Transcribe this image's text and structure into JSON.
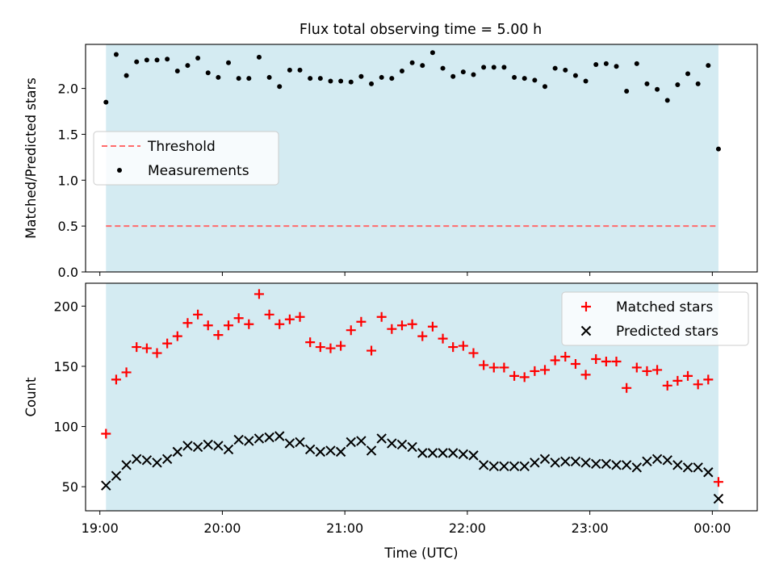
{
  "chart_data": [
    {
      "type": "scatter",
      "title": "Flux total observing time = 5.00 h",
      "xlabel": "",
      "ylabel": "Matched/Predicted stars",
      "xlim": [
        "18:53",
        "00:22"
      ],
      "ylim": [
        0,
        2.48
      ],
      "yticks": [
        0.0,
        0.5,
        1.0,
        1.5,
        2.0
      ],
      "ytick_labels": [
        "0.0",
        "0.5",
        "1.0",
        "1.5",
        "2.0"
      ],
      "shaded_region": {
        "x_start": "19:03",
        "x_end": "00:03",
        "color": "#add8e6"
      },
      "threshold": {
        "name": "Threshold",
        "y": 0.5,
        "color": "#ff6b6b",
        "style": "dashed"
      },
      "legend": {
        "position": "center-left",
        "entries": [
          "Threshold",
          "Measurements"
        ]
      },
      "series": [
        {
          "name": "Measurements",
          "marker": "dot",
          "color": "#000000",
          "x": [
            "19:03",
            "19:08",
            "19:13",
            "19:18",
            "19:23",
            "19:28",
            "19:33",
            "19:38",
            "19:43",
            "19:48",
            "19:53",
            "19:58",
            "20:03",
            "20:08",
            "20:13",
            "20:18",
            "20:23",
            "20:28",
            "20:33",
            "20:38",
            "20:43",
            "20:48",
            "20:53",
            "20:58",
            "21:03",
            "21:08",
            "21:13",
            "21:18",
            "21:23",
            "21:28",
            "21:33",
            "21:38",
            "21:43",
            "21:48",
            "21:53",
            "21:58",
            "22:03",
            "22:08",
            "22:13",
            "22:18",
            "22:23",
            "22:28",
            "22:33",
            "22:38",
            "22:43",
            "22:48",
            "22:53",
            "22:58",
            "23:03",
            "23:08",
            "23:13",
            "23:18",
            "23:23",
            "23:28",
            "23:33",
            "23:38",
            "23:43",
            "23:48",
            "23:53",
            "23:58",
            "00:03"
          ],
          "y": [
            1.85,
            2.37,
            2.14,
            2.29,
            2.31,
            2.31,
            2.32,
            2.19,
            2.25,
            2.33,
            2.17,
            2.12,
            2.28,
            2.11,
            2.11,
            2.34,
            2.12,
            2.02,
            2.2,
            2.2,
            2.11,
            2.11,
            2.08,
            2.08,
            2.07,
            2.13,
            2.05,
            2.12,
            2.11,
            2.19,
            2.28,
            2.25,
            2.39,
            2.22,
            2.13,
            2.18,
            2.15,
            2.23,
            2.23,
            2.23,
            2.12,
            2.11,
            2.09,
            2.02,
            2.22,
            2.2,
            2.14,
            2.08,
            2.26,
            2.27,
            2.24,
            1.97,
            2.27,
            2.05,
            1.99,
            1.87,
            2.04,
            2.16,
            2.05,
            2.25,
            1.34
          ]
        }
      ]
    },
    {
      "type": "scatter",
      "title": "",
      "xlabel": "Time (UTC)",
      "ylabel": "Count",
      "xlim": [
        "18:53",
        "00:22"
      ],
      "ylim": [
        30,
        219
      ],
      "yticks": [
        50,
        100,
        150,
        200
      ],
      "ytick_labels": [
        "50",
        "100",
        "150",
        "200"
      ],
      "xticks": [
        "19:00",
        "20:00",
        "21:00",
        "22:00",
        "23:00",
        "00:00"
      ],
      "xtick_labels": [
        "19:00",
        "20:00",
        "21:00",
        "22:00",
        "23:00",
        "00:00"
      ],
      "shaded_region": {
        "x_start": "19:03",
        "x_end": "00:03",
        "color": "#add8e6"
      },
      "legend": {
        "position": "top-right",
        "entries": [
          "Matched stars",
          "Predicted stars"
        ]
      },
      "series": [
        {
          "name": "Matched stars",
          "marker": "plus",
          "color": "#ff0000",
          "x": [
            "19:03",
            "19:08",
            "19:13",
            "19:18",
            "19:23",
            "19:28",
            "19:33",
            "19:38",
            "19:43",
            "19:48",
            "19:53",
            "19:58",
            "20:03",
            "20:08",
            "20:13",
            "20:18",
            "20:23",
            "20:28",
            "20:33",
            "20:38",
            "20:43",
            "20:48",
            "20:53",
            "20:58",
            "21:03",
            "21:08",
            "21:13",
            "21:18",
            "21:23",
            "21:28",
            "21:33",
            "21:38",
            "21:43",
            "21:48",
            "21:53",
            "21:58",
            "22:03",
            "22:08",
            "22:13",
            "22:18",
            "22:23",
            "22:28",
            "22:33",
            "22:38",
            "22:43",
            "22:48",
            "22:53",
            "22:58",
            "23:03",
            "23:08",
            "23:13",
            "23:18",
            "23:23",
            "23:28",
            "23:33",
            "23:38",
            "23:43",
            "23:48",
            "23:53",
            "23:58",
            "00:03"
          ],
          "y": [
            94,
            139,
            145,
            166,
            165,
            161,
            169,
            175,
            186,
            193,
            184,
            176,
            184,
            190,
            185,
            210,
            193,
            185,
            189,
            191,
            170,
            166,
            165,
            167,
            180,
            187,
            163,
            191,
            181,
            184,
            185,
            175,
            183,
            173,
            166,
            167,
            161,
            151,
            149,
            149,
            142,
            141,
            146,
            147,
            155,
            158,
            152,
            143,
            156,
            154,
            154,
            132,
            149,
            146,
            147,
            134,
            138,
            142,
            135,
            139,
            54
          ]
        },
        {
          "name": "Predicted stars",
          "marker": "x",
          "color": "#000000",
          "x": [
            "19:03",
            "19:08",
            "19:13",
            "19:18",
            "19:23",
            "19:28",
            "19:33",
            "19:38",
            "19:43",
            "19:48",
            "19:53",
            "19:58",
            "20:03",
            "20:08",
            "20:13",
            "20:18",
            "20:23",
            "20:28",
            "20:33",
            "20:38",
            "20:43",
            "20:48",
            "20:53",
            "20:58",
            "21:03",
            "21:08",
            "21:13",
            "21:18",
            "21:23",
            "21:28",
            "21:33",
            "21:38",
            "21:43",
            "21:48",
            "21:53",
            "21:58",
            "22:03",
            "22:08",
            "22:13",
            "22:18",
            "22:23",
            "22:28",
            "22:33",
            "22:38",
            "22:43",
            "22:48",
            "22:53",
            "22:58",
            "23:03",
            "23:08",
            "23:13",
            "23:18",
            "23:23",
            "23:28",
            "23:33",
            "23:38",
            "23:43",
            "23:48",
            "23:53",
            "23:58",
            "00:03"
          ],
          "y": [
            51,
            59,
            68,
            73,
            72,
            70,
            73,
            79,
            84,
            83,
            85,
            84,
            81,
            89,
            88,
            90,
            91,
            92,
            86,
            87,
            81,
            79,
            80,
            79,
            87,
            88,
            80,
            90,
            86,
            85,
            83,
            78,
            78,
            78,
            78,
            77,
            76,
            68,
            67,
            67,
            67,
            67,
            70,
            73,
            70,
            71,
            71,
            70,
            69,
            69,
            68,
            68,
            66,
            71,
            73,
            72,
            68,
            66,
            66,
            62,
            40
          ]
        }
      ]
    }
  ]
}
